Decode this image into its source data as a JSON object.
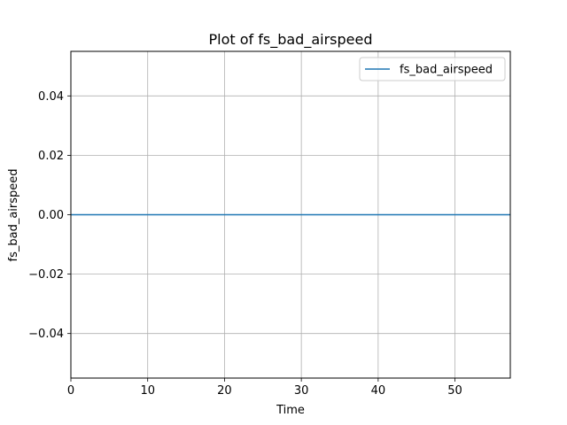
{
  "chart_data": {
    "type": "line",
    "title": "Plot of fs_bad_airspeed",
    "xlabel": "Time",
    "ylabel": "fs_bad_airspeed",
    "xlim": [
      0,
      57.2
    ],
    "ylim": [
      -0.055,
      0.055
    ],
    "x_ticks": [
      0,
      10,
      20,
      30,
      40,
      50
    ],
    "x_tick_labels": [
      "0",
      "10",
      "20",
      "30",
      "40",
      "50"
    ],
    "y_ticks": [
      -0.04,
      -0.02,
      0.0,
      0.02,
      0.04
    ],
    "y_tick_labels": [
      "−0.04",
      "−0.02",
      "0.00",
      "0.02",
      "0.04"
    ],
    "grid": true,
    "legend_position": "top-right",
    "series": [
      {
        "name": "fs_bad_airspeed",
        "color": "#1f77b4",
        "x": [
          0,
          57.2
        ],
        "y": [
          0,
          0
        ]
      }
    ]
  }
}
